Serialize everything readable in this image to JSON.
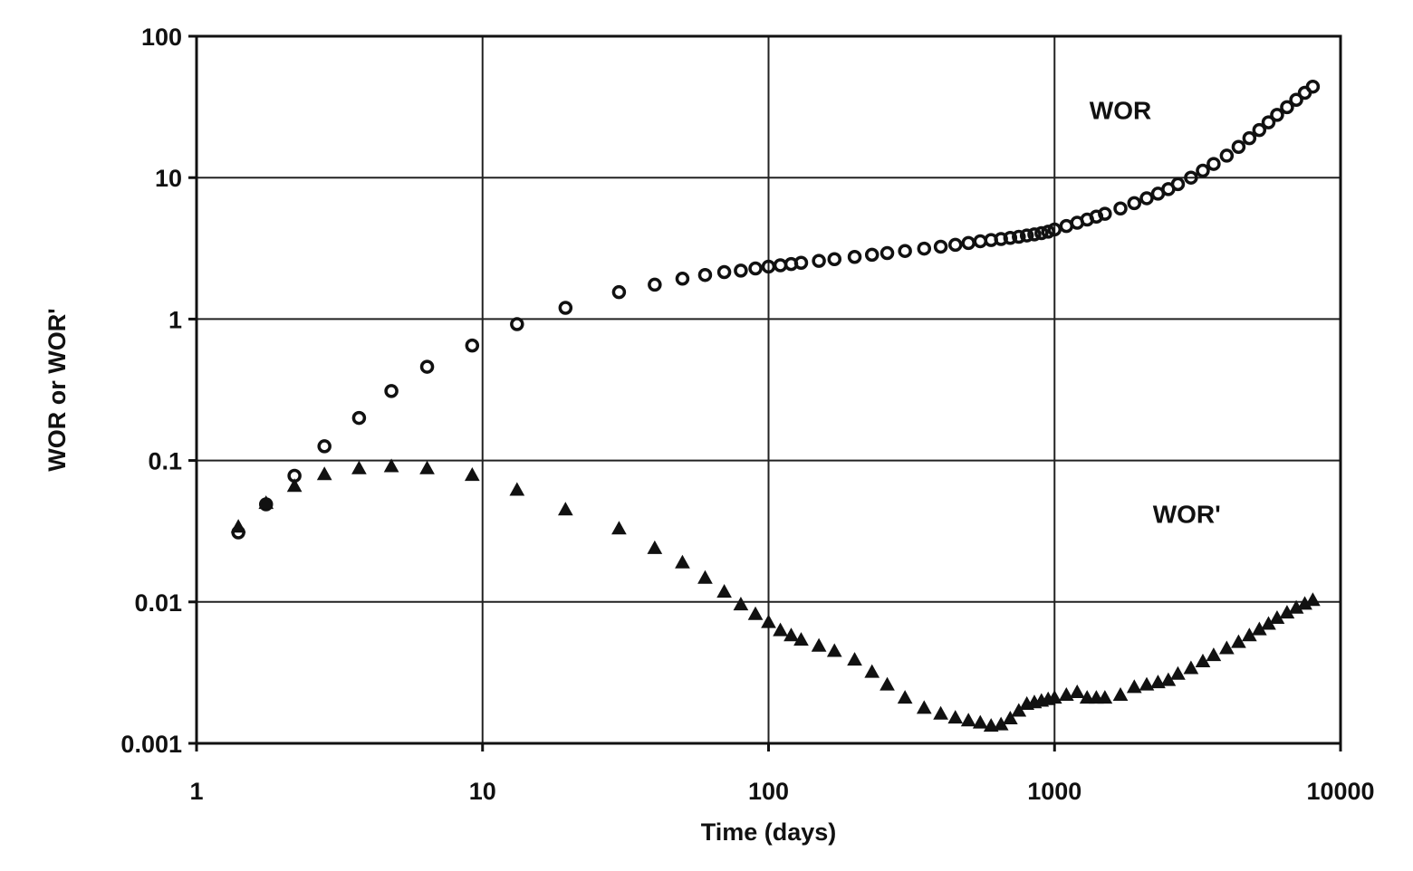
{
  "chart_data": {
    "type": "scatter",
    "xscale": "log",
    "yscale": "log",
    "xlim": [
      1,
      10000
    ],
    "ylim": [
      0.001,
      100
    ],
    "xlabel": "Time (days)",
    "ylabel": "WOR or WOR'",
    "x_ticks": [
      {
        "value": 1,
        "label": "1"
      },
      {
        "value": 10,
        "label": "10"
      },
      {
        "value": 100,
        "label": "100"
      },
      {
        "value": 1000,
        "label": "1000"
      },
      {
        "value": 10000,
        "label": "10000"
      }
    ],
    "y_ticks": [
      {
        "value": 0.001,
        "label": "0.001"
      },
      {
        "value": 0.01,
        "label": "0.01"
      },
      {
        "value": 0.1,
        "label": "0.1"
      },
      {
        "value": 1,
        "label": "1"
      },
      {
        "value": 10,
        "label": "10"
      },
      {
        "value": 100,
        "label": "100"
      }
    ],
    "grid": true,
    "legend": "none",
    "annotations": [
      {
        "text": "WOR",
        "x": 1700,
        "y": 30
      },
      {
        "text": "WOR'",
        "x": 2900,
        "y": 0.042
      }
    ],
    "series": [
      {
        "name": "WOR",
        "marker": "circle",
        "x": [
          1.4,
          1.75,
          2.2,
          2.8,
          3.7,
          4.8,
          6.4,
          9.2,
          13.2,
          19.5,
          30,
          40,
          50,
          60,
          70,
          80,
          90,
          100,
          110,
          120,
          130,
          150,
          170,
          200,
          230,
          260,
          300,
          350,
          400,
          450,
          500,
          550,
          600,
          650,
          700,
          750,
          800,
          850,
          900,
          950,
          1000,
          1100,
          1200,
          1300,
          1400,
          1500,
          1700,
          1900,
          2100,
          2300,
          2500,
          2700,
          3000,
          3300,
          3600,
          4000,
          4400,
          4800,
          5200,
          5600,
          6000,
          6500,
          7000,
          7500,
          8000
        ],
        "y": [
          0.031,
          0.049,
          0.078,
          0.126,
          0.2,
          0.31,
          0.46,
          0.65,
          0.92,
          1.2,
          1.55,
          1.75,
          1.93,
          2.05,
          2.15,
          2.2,
          2.28,
          2.35,
          2.4,
          2.45,
          2.5,
          2.58,
          2.65,
          2.75,
          2.85,
          2.93,
          3.03,
          3.15,
          3.25,
          3.35,
          3.45,
          3.55,
          3.62,
          3.68,
          3.75,
          3.82,
          3.9,
          3.97,
          4.05,
          4.15,
          4.3,
          4.55,
          4.8,
          5.05,
          5.3,
          5.55,
          6.05,
          6.6,
          7.15,
          7.7,
          8.3,
          9.0,
          10.0,
          11.2,
          12.5,
          14.3,
          16.5,
          19.0,
          21.7,
          24.6,
          27.8,
          31.5,
          35.5,
          39.8,
          44.0
        ]
      },
      {
        "name": "WOR'",
        "marker": "triangle",
        "x": [
          1.4,
          1.75,
          2.2,
          2.8,
          3.7,
          4.8,
          6.4,
          9.2,
          13.2,
          19.5,
          30,
          40,
          50,
          60,
          70,
          80,
          90,
          100,
          110,
          120,
          130,
          150,
          170,
          200,
          230,
          260,
          300,
          350,
          400,
          450,
          500,
          550,
          600,
          650,
          700,
          750,
          800,
          850,
          900,
          950,
          1000,
          1100,
          1200,
          1300,
          1400,
          1500,
          1700,
          1900,
          2100,
          2300,
          2500,
          2700,
          3000,
          3300,
          3600,
          4000,
          4400,
          4800,
          5200,
          5600,
          6000,
          6500,
          7000,
          7500,
          8000
        ],
        "y": [
          0.034,
          0.05,
          0.066,
          0.08,
          0.088,
          0.091,
          0.088,
          0.079,
          0.062,
          0.045,
          0.033,
          0.024,
          0.019,
          0.0148,
          0.0118,
          0.0096,
          0.0082,
          0.0072,
          0.0063,
          0.0058,
          0.0054,
          0.0049,
          0.0045,
          0.0039,
          0.0032,
          0.0026,
          0.0021,
          0.00178,
          0.00162,
          0.00152,
          0.00145,
          0.0014,
          0.00133,
          0.00136,
          0.0015,
          0.0017,
          0.0019,
          0.00195,
          0.002,
          0.00205,
          0.0021,
          0.0022,
          0.0023,
          0.0021,
          0.0021,
          0.0021,
          0.0022,
          0.0025,
          0.0026,
          0.0027,
          0.0028,
          0.0031,
          0.0034,
          0.0038,
          0.0042,
          0.0047,
          0.0052,
          0.0058,
          0.0064,
          0.007,
          0.0077,
          0.0084,
          0.0091,
          0.0097,
          0.0103
        ]
      }
    ]
  }
}
